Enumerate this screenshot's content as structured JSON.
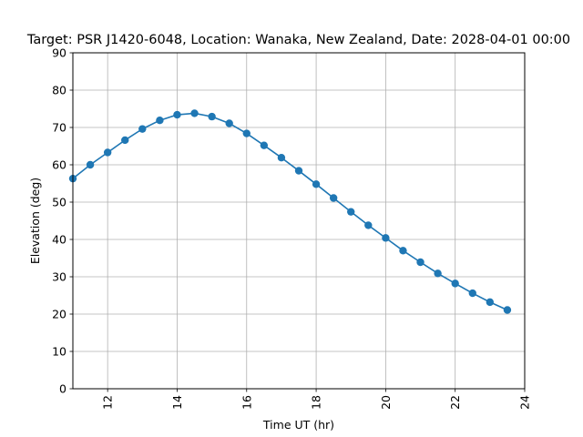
{
  "chart_data": {
    "type": "line",
    "title": "Target: PSR J1420-6048,  Location: Wanaka, New Zealand, Date: 2028-04-01 00:00",
    "xlabel": "Time UT (hr)",
    "ylabel": "Elevation (deg)",
    "xlim": [
      11,
      24
    ],
    "ylim": [
      0,
      90
    ],
    "x_ticks": [
      12,
      14,
      16,
      18,
      20,
      22,
      24
    ],
    "y_ticks": [
      0,
      10,
      20,
      30,
      40,
      50,
      60,
      70,
      80,
      90
    ],
    "x_tick_rotation": "vertical",
    "grid": true,
    "legend": "none",
    "series": [
      {
        "color": "#1f77b4",
        "marker": "circle",
        "x": [
          11.0,
          11.5,
          12.0,
          12.5,
          13.0,
          13.5,
          14.0,
          14.5,
          15.0,
          15.5,
          16.0,
          16.5,
          17.0,
          17.5,
          18.0,
          18.5,
          19.0,
          19.5,
          20.0,
          20.5,
          21.0,
          21.5,
          22.0,
          22.5,
          23.0,
          23.5
        ],
        "y": [
          56.3,
          60.0,
          63.3,
          66.6,
          69.6,
          71.9,
          73.4,
          73.8,
          72.9,
          71.1,
          68.4,
          65.2,
          61.9,
          58.4,
          54.8,
          51.1,
          47.4,
          43.8,
          40.4,
          37.0,
          33.9,
          30.9,
          28.2,
          25.6,
          23.2,
          21.1
        ]
      }
    ]
  }
}
